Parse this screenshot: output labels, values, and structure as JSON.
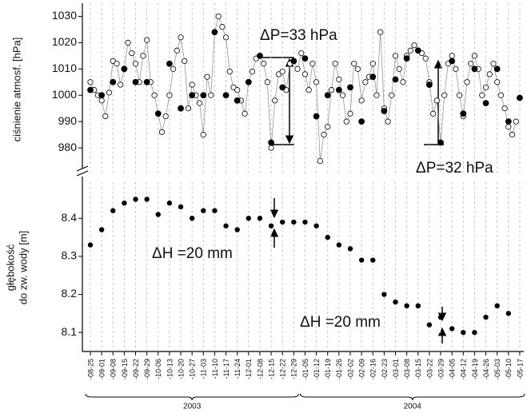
{
  "chart_data": [
    {
      "type": "line",
      "ylabel": "ciśnienie atmosf. [hPa]",
      "ylim": [
        970,
        1035
      ],
      "yticks": [
        980,
        990,
        1000,
        1010,
        1020,
        1030
      ],
      "grid": true,
      "series": [
        {
          "color": "#888888",
          "marker": "open",
          "values": [
            1005,
            1002,
            1000,
            998,
            992,
            1001,
            1013,
            1012,
            1004,
            1010,
            1020,
            1016,
            1012,
            1005,
            1015,
            1021,
            1005,
            1000,
            993,
            986,
            992,
            1000,
            1010,
            1017,
            1022,
            1013,
            995,
            1004,
            1000,
            997,
            985,
            1007,
            1000,
            1024,
            1030,
            1026,
            1022,
            1009,
            1003,
            1002,
            998,
            993,
            1005,
            1009,
            1014,
            1015,
            1012,
            1005,
            980,
            998,
            1008,
            1009,
            1002,
            1012,
            1013,
            1010,
            1016,
            1008,
            1002,
            1012,
            1005,
            975,
            985,
            988,
            1002,
            1012,
            1006,
            1000,
            990,
            993,
            1012,
            1010,
            998,
            1005,
            1007,
            1012,
            1000,
            1024,
            995,
            990,
            1000,
            1015,
            1010,
            1005,
            1015,
            1017,
            1019,
            1017,
            1016,
            1014,
            1005,
            993,
            998,
            982,
            1000,
            1012,
            1015,
            1010,
            1000,
            992,
            1005,
            1012,
            1015,
            1010,
            1000,
            1003,
            1008,
            1012,
            1005,
            1000,
            995,
            988,
            985,
            990
          ]
        },
        {
          "color": "#000000",
          "marker": "filled",
          "values": [
            1002,
            1000,
            1005,
            1010,
            1005,
            1005,
            993,
            1012,
            995,
            1000,
            1000,
            1024,
            1000,
            998,
            1005,
            1015,
            982,
            1003,
            1013,
            1014,
            992,
            1000,
            1002,
            1003,
            990,
            1007,
            994,
            1006,
            1014,
            1017,
            1004,
            982,
            1013,
            993,
            1010,
            997,
            1010,
            990,
            999
          ]
        }
      ],
      "annotations": [
        "ΔP=33 hPa",
        "ΔP=32 hPa"
      ]
    },
    {
      "type": "scatter",
      "ylabel": [
        "głębokość",
        "do zw. wody [m]"
      ],
      "ylim": [
        8.05,
        8.495
      ],
      "yticks": [
        8.1,
        8.2,
        8.3,
        8.4
      ],
      "grid": true,
      "groups": [
        {
          "label": "2003",
          "categories": [
            "-08-25",
            "-09-01",
            "-09-08",
            "-09-15",
            "-09-22",
            "-09-29",
            "-10-06",
            "-10-13",
            "-10-20",
            "-10-27",
            "-11-03",
            "-11-10",
            "-11-17",
            "-11-24",
            "-12-01",
            "-12-08",
            "-12-15",
            "-12-22",
            "-12-29"
          ]
        },
        {
          "label": "2004",
          "categories": [
            "-01-05",
            "-01-12",
            "-01-19",
            "-01-26",
            "-02-02",
            "-02-09",
            "-02-16",
            "-02-23",
            "-03-01",
            "-03-08",
            "-03-15",
            "-03-22",
            "-03-29",
            "-04-05",
            "-04-12",
            "-04-19",
            "-04-26",
            "-05-03",
            "-05-10",
            "-05-17"
          ]
        }
      ],
      "color": "#000000",
      "values": [
        8.33,
        8.37,
        8.42,
        8.44,
        8.45,
        8.45,
        8.41,
        8.44,
        8.43,
        8.4,
        8.42,
        8.42,
        8.38,
        8.37,
        8.4,
        8.4,
        8.38,
        8.39,
        8.39,
        8.39,
        8.38,
        8.35,
        8.33,
        8.32,
        8.29,
        8.29,
        8.2,
        8.18,
        8.17,
        8.17,
        8.12,
        8.14,
        8.11,
        8.1,
        8.1,
        8.14,
        8.17,
        8.15,
        null
      ],
      "annotations": [
        "ΔH =20 mm",
        "ΔH =20 mm"
      ]
    }
  ]
}
